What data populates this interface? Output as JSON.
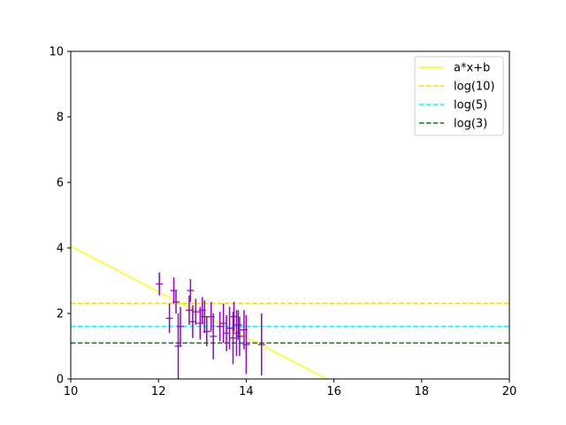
{
  "chart_data": {
    "type": "scatter",
    "xlim": [
      10,
      20
    ],
    "ylim": [
      0,
      10
    ],
    "xticks": [
      10,
      12,
      14,
      16,
      18,
      20
    ],
    "yticks": [
      0,
      2,
      4,
      6,
      8,
      10
    ],
    "x_tick_labels": [
      "10",
      "12",
      "14",
      "16",
      "18",
      "20"
    ],
    "y_tick_labels": [
      "0",
      "2",
      "4",
      "6",
      "8",
      "10"
    ],
    "grid": false,
    "legend_position": "upper right",
    "series": [
      {
        "name": "a*x+b",
        "kind": "line",
        "style": "solid",
        "color": "#ffff00",
        "points": [
          [
            10,
            4.05
          ],
          [
            15.84,
            0
          ]
        ]
      },
      {
        "name": "log(10)",
        "kind": "hline",
        "style": "dashed",
        "color": "#ffd700",
        "y": 2.303
      },
      {
        "name": "log(5)",
        "kind": "hline",
        "style": "dashed",
        "color": "#00ffff",
        "y": 1.609
      },
      {
        "name": "log(3)",
        "kind": "hline",
        "style": "dashed",
        "color": "#008000",
        "y": 1.099
      }
    ],
    "error_points": {
      "color": "#9400d3",
      "points": [
        {
          "x": 12.02,
          "y": 2.9,
          "err": 0.35
        },
        {
          "x": 12.25,
          "y": 1.85,
          "err": 0.45
        },
        {
          "x": 12.35,
          "y": 2.7,
          "err": 0.4
        },
        {
          "x": 12.4,
          "y": 2.35,
          "err": 0.35
        },
        {
          "x": 12.45,
          "y": 1.0,
          "err": 1.0
        },
        {
          "x": 12.5,
          "y": 1.6,
          "err": 0.6
        },
        {
          "x": 12.7,
          "y": 2.1,
          "err": 0.45
        },
        {
          "x": 12.73,
          "y": 2.7,
          "err": 0.35
        },
        {
          "x": 12.78,
          "y": 1.75,
          "err": 0.5
        },
        {
          "x": 12.85,
          "y": 2.05,
          "err": 0.4
        },
        {
          "x": 12.95,
          "y": 1.7,
          "err": 0.5
        },
        {
          "x": 13.0,
          "y": 2.1,
          "err": 0.4
        },
        {
          "x": 13.05,
          "y": 1.9,
          "err": 0.5
        },
        {
          "x": 13.1,
          "y": 1.45,
          "err": 0.45
        },
        {
          "x": 13.2,
          "y": 1.9,
          "err": 0.45
        },
        {
          "x": 13.25,
          "y": 1.3,
          "err": 0.7
        },
        {
          "x": 13.4,
          "y": 1.6,
          "err": 0.45
        },
        {
          "x": 13.48,
          "y": 1.7,
          "err": 0.6
        },
        {
          "x": 13.55,
          "y": 1.4,
          "err": 0.55
        },
        {
          "x": 13.62,
          "y": 1.55,
          "err": 0.65
        },
        {
          "x": 13.7,
          "y": 1.25,
          "err": 0.8
        },
        {
          "x": 13.72,
          "y": 1.9,
          "err": 0.45
        },
        {
          "x": 13.78,
          "y": 1.4,
          "err": 0.7
        },
        {
          "x": 13.82,
          "y": 1.65,
          "err": 0.45
        },
        {
          "x": 13.85,
          "y": 1.3,
          "err": 0.6
        },
        {
          "x": 13.95,
          "y": 1.5,
          "err": 0.6
        },
        {
          "x": 14.0,
          "y": 1.05,
          "err": 0.9
        },
        {
          "x": 14.35,
          "y": 1.05,
          "err": 0.95
        }
      ]
    }
  }
}
